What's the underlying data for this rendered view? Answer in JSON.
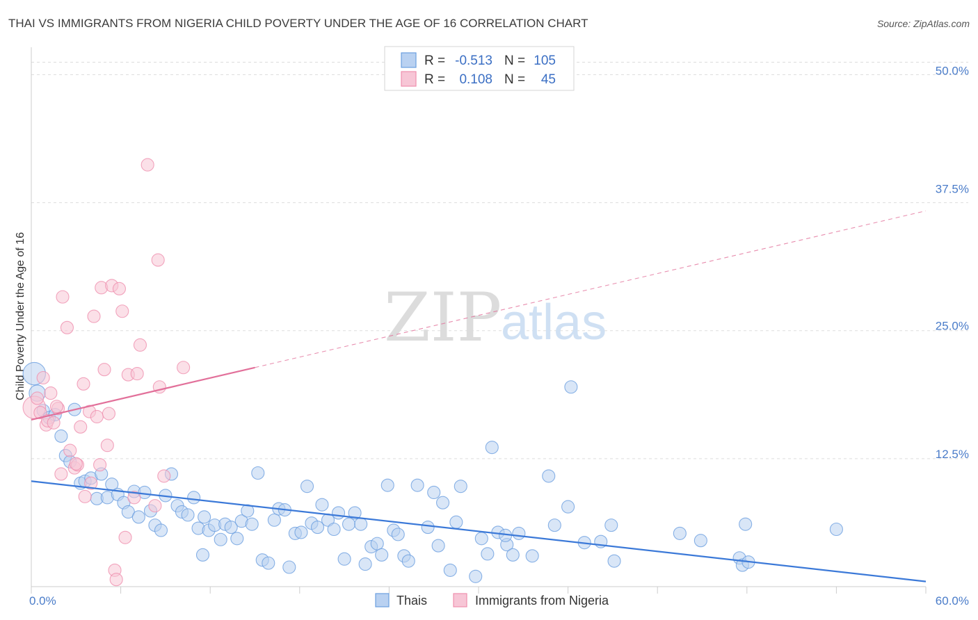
{
  "title": "THAI VS IMMIGRANTS FROM NIGERIA CHILD POVERTY UNDER THE AGE OF 16 CORRELATION CHART",
  "source": "Source: ZipAtlas.com",
  "watermark": {
    "zip": "ZIP",
    "atlas": "atlas"
  },
  "colors": {
    "thais": "#6b9fe0",
    "thais_fill": "#b9d1f1",
    "nigeria": "#ef8fae",
    "nigeria_fill": "#f7c6d6",
    "thais_line": "#3b79d8",
    "nigeria_line": "#e2709a",
    "grid": "#dddddd",
    "tick_text": "#4a7cc9"
  },
  "legend": {
    "rows": [
      {
        "r_label": "R =",
        "r_value": "-0.513",
        "n_label": "N =",
        "n_value": "105"
      },
      {
        "r_label": "R =",
        "r_value": "0.108",
        "n_label": "N =",
        "n_value": "45"
      }
    ]
  },
  "chart_data": {
    "type": "scatter",
    "title": "THAI VS IMMIGRANTS FROM NIGERIA CHILD POVERTY UNDER THE AGE OF 16 CORRELATION CHART",
    "ylabel": "Child Poverty Under the Age of 16",
    "xlabel": "",
    "xlim": [
      0,
      60
    ],
    "ylim": [
      0,
      52
    ],
    "x_tick_labels": [
      "0.0%",
      "60.0%"
    ],
    "y_ticks": [
      12.5,
      25.0,
      37.5,
      50.0
    ],
    "y_tick_labels": [
      "12.5%",
      "25.0%",
      "37.5%",
      "50.0%"
    ],
    "grid": true,
    "legend_position": "top-center",
    "series": [
      {
        "name": "Thais",
        "color": "#6b9fe0",
        "trend": {
          "x": [
            0,
            60
          ],
          "y": [
            10.3,
            0.5
          ],
          "dashed_from": null
        },
        "points": [
          [
            0.2,
            20.8,
            1.8
          ],
          [
            0.4,
            18.9,
            1.3
          ],
          [
            0.8,
            17.2,
            1
          ],
          [
            1.2,
            16.5,
            1
          ],
          [
            1.6,
            16.8,
            1
          ],
          [
            2.0,
            14.7,
            1
          ],
          [
            2.3,
            12.8,
            1
          ],
          [
            2.6,
            12.2,
            1
          ],
          [
            2.9,
            17.3,
            1
          ],
          [
            3.3,
            10.1,
            1
          ],
          [
            3.6,
            10.3,
            1
          ],
          [
            4.0,
            10.6,
            1
          ],
          [
            4.4,
            8.6,
            1
          ],
          [
            4.7,
            11.0,
            1
          ],
          [
            5.1,
            8.7,
            1
          ],
          [
            5.4,
            10.0,
            1
          ],
          [
            5.8,
            9.0,
            1
          ],
          [
            6.2,
            8.2,
            1
          ],
          [
            6.5,
            7.3,
            1
          ],
          [
            6.9,
            9.3,
            1
          ],
          [
            7.2,
            6.8,
            1
          ],
          [
            7.6,
            9.2,
            1
          ],
          [
            8.0,
            7.4,
            1
          ],
          [
            8.3,
            6.0,
            1
          ],
          [
            8.7,
            5.5,
            1
          ],
          [
            9.0,
            8.9,
            1
          ],
          [
            9.4,
            11.0,
            1
          ],
          [
            9.8,
            7.9,
            1
          ],
          [
            10.1,
            7.3,
            1
          ],
          [
            10.5,
            7.0,
            1
          ],
          [
            10.9,
            8.7,
            1
          ],
          [
            11.2,
            5.7,
            1
          ],
          [
            11.6,
            6.8,
            1
          ],
          [
            11.9,
            5.5,
            1
          ],
          [
            12.3,
            6.0,
            1
          ],
          [
            12.7,
            4.6,
            1
          ],
          [
            13.0,
            6.1,
            1
          ],
          [
            13.4,
            5.8,
            1
          ],
          [
            13.8,
            4.7,
            1
          ],
          [
            14.1,
            6.4,
            1
          ],
          [
            14.5,
            7.4,
            1
          ],
          [
            14.8,
            6.1,
            1
          ],
          [
            15.2,
            11.1,
            1
          ],
          [
            15.5,
            2.6,
            1
          ],
          [
            15.9,
            2.3,
            1
          ],
          [
            16.3,
            6.5,
            1
          ],
          [
            16.6,
            7.6,
            1
          ],
          [
            17.0,
            7.5,
            1
          ],
          [
            17.3,
            1.9,
            1
          ],
          [
            17.7,
            5.2,
            1
          ],
          [
            18.1,
            5.3,
            1
          ],
          [
            18.5,
            9.8,
            1
          ],
          [
            18.8,
            6.2,
            1
          ],
          [
            19.2,
            5.8,
            1
          ],
          [
            19.5,
            8.0,
            1
          ],
          [
            19.9,
            6.5,
            1
          ],
          [
            20.3,
            5.6,
            1
          ],
          [
            20.6,
            7.2,
            1
          ],
          [
            21.0,
            2.7,
            1
          ],
          [
            21.3,
            6.1,
            1
          ],
          [
            21.7,
            7.2,
            1
          ],
          [
            22.1,
            6.1,
            1
          ],
          [
            22.4,
            2.2,
            1
          ],
          [
            22.8,
            3.9,
            1
          ],
          [
            23.2,
            4.2,
            1
          ],
          [
            23.5,
            3.1,
            1
          ],
          [
            23.9,
            9.9,
            1
          ],
          [
            24.3,
            5.5,
            1
          ],
          [
            24.6,
            5.1,
            1
          ],
          [
            25.0,
            3.0,
            1
          ],
          [
            25.3,
            2.5,
            1
          ],
          [
            25.9,
            9.9,
            1
          ],
          [
            26.6,
            5.8,
            1
          ],
          [
            27.0,
            9.2,
            1
          ],
          [
            27.3,
            4.0,
            1
          ],
          [
            27.6,
            8.2,
            1
          ],
          [
            28.1,
            1.6,
            1
          ],
          [
            28.5,
            6.3,
            1
          ],
          [
            28.8,
            9.8,
            1
          ],
          [
            29.8,
            1.0,
            1
          ],
          [
            30.2,
            4.7,
            1
          ],
          [
            30.6,
            3.2,
            1
          ],
          [
            30.9,
            13.6,
            1
          ],
          [
            31.3,
            5.3,
            1
          ],
          [
            31.9,
            4.1,
            1
          ],
          [
            32.3,
            3.1,
            1
          ],
          [
            32.7,
            5.2,
            1
          ],
          [
            33.6,
            3.0,
            1
          ],
          [
            34.7,
            10.8,
            1
          ],
          [
            35.1,
            6.0,
            1
          ],
          [
            36.0,
            7.8,
            1
          ],
          [
            36.2,
            19.5,
            1
          ],
          [
            37.1,
            4.3,
            1
          ],
          [
            38.2,
            4.4,
            1
          ],
          [
            38.9,
            6.0,
            1
          ],
          [
            39.1,
            2.5,
            1
          ],
          [
            43.5,
            5.2,
            1
          ],
          [
            44.9,
            4.5,
            1
          ],
          [
            47.5,
            2.8,
            1
          ],
          [
            47.7,
            2.1,
            1
          ],
          [
            47.9,
            6.1,
            1
          ],
          [
            48.1,
            2.4,
            1
          ],
          [
            54.0,
            5.6,
            1
          ],
          [
            31.8,
            5.0,
            1
          ],
          [
            11.5,
            3.1,
            1
          ]
        ]
      },
      {
        "name": "Immigrants from Nigeria",
        "color": "#ef8fae",
        "trend": {
          "x": [
            0,
            60
          ],
          "y": [
            16.3,
            36.7
          ],
          "solid_until_x": 15
        },
        "points": [
          [
            0.2,
            17.5,
            1.8
          ],
          [
            0.4,
            18.4,
            1
          ],
          [
            0.6,
            17.0,
            1
          ],
          [
            0.8,
            20.4,
            1
          ],
          [
            1.0,
            15.8,
            1
          ],
          [
            1.1,
            16.2,
            1
          ],
          [
            1.3,
            18.9,
            1
          ],
          [
            1.5,
            16.0,
            1
          ],
          [
            1.8,
            17.4,
            1
          ],
          [
            2.1,
            28.3,
            1
          ],
          [
            2.4,
            25.3,
            1
          ],
          [
            2.6,
            13.3,
            1
          ],
          [
            2.9,
            11.6,
            1
          ],
          [
            3.1,
            11.9,
            1
          ],
          [
            3.3,
            15.6,
            1
          ],
          [
            3.5,
            19.8,
            1
          ],
          [
            3.6,
            8.8,
            1
          ],
          [
            3.9,
            17.1,
            1
          ],
          [
            4.0,
            10.1,
            1
          ],
          [
            4.2,
            26.4,
            1
          ],
          [
            4.4,
            16.6,
            1
          ],
          [
            4.6,
            11.9,
            1
          ],
          [
            4.7,
            29.2,
            1
          ],
          [
            4.9,
            21.2,
            1
          ],
          [
            5.1,
            13.8,
            1
          ],
          [
            5.2,
            16.9,
            1
          ],
          [
            5.4,
            29.4,
            1
          ],
          [
            5.6,
            1.6,
            1
          ],
          [
            5.7,
            0.7,
            1
          ],
          [
            5.9,
            29.1,
            1
          ],
          [
            6.1,
            26.9,
            1
          ],
          [
            6.3,
            4.8,
            1
          ],
          [
            6.5,
            20.7,
            1
          ],
          [
            6.9,
            8.7,
            1
          ],
          [
            7.1,
            20.8,
            1
          ],
          [
            7.3,
            23.6,
            1
          ],
          [
            7.8,
            41.2,
            1
          ],
          [
            8.3,
            7.9,
            1
          ],
          [
            8.5,
            31.9,
            1
          ],
          [
            8.6,
            19.5,
            1
          ],
          [
            8.9,
            10.8,
            1
          ],
          [
            10.2,
            21.4,
            1
          ],
          [
            2.0,
            11.0,
            1
          ],
          [
            3.0,
            12.0,
            1
          ],
          [
            1.7,
            17.6,
            1
          ]
        ]
      }
    ]
  }
}
